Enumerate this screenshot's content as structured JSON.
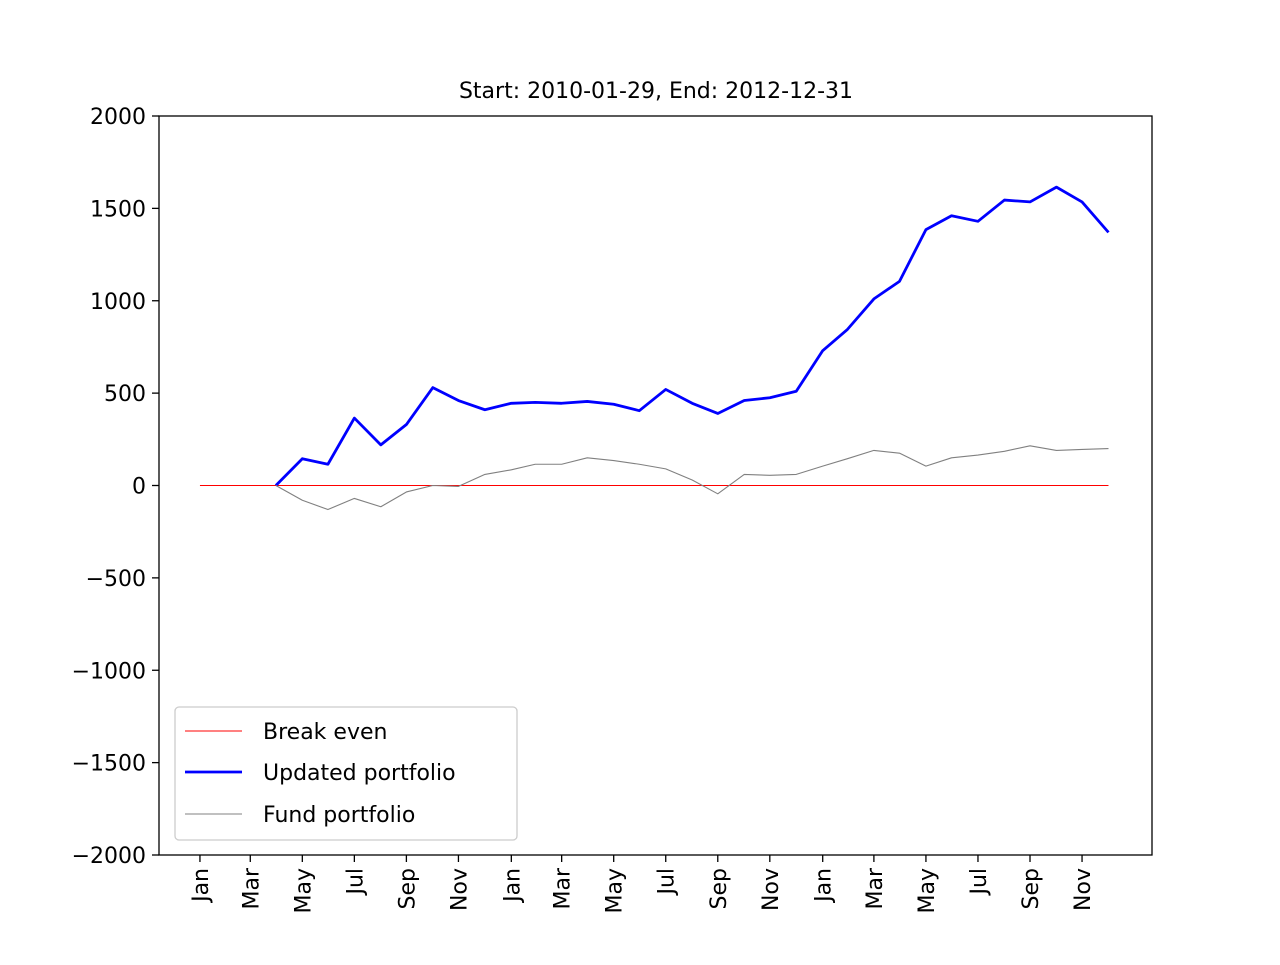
{
  "chart_data": {
    "type": "line",
    "title": "Start: 2010-01-29, End: 2012-12-31",
    "xlabel": "",
    "ylabel": "",
    "ylim": [
      -2000,
      2000
    ],
    "yticks": [
      -2000,
      -1500,
      -1000,
      -500,
      0,
      500,
      1000,
      1500,
      2000
    ],
    "ytick_labels": [
      "−2000",
      "−1500",
      "−1000",
      "−500",
      "0",
      "500",
      "1000",
      "1500",
      "2000"
    ],
    "xticks": [
      {
        "date": "2010-01-31",
        "label": "Jan"
      },
      {
        "date": "2010-03-31",
        "label": "Mar"
      },
      {
        "date": "2010-05-31",
        "label": "May"
      },
      {
        "date": "2010-07-31",
        "label": "Jul"
      },
      {
        "date": "2010-09-30",
        "label": "Sep"
      },
      {
        "date": "2010-11-30",
        "label": "Nov"
      },
      {
        "date": "2011-01-31",
        "label": "Jan"
      },
      {
        "date": "2011-03-31",
        "label": "Mar"
      },
      {
        "date": "2011-05-31",
        "label": "May"
      },
      {
        "date": "2011-07-31",
        "label": "Jul"
      },
      {
        "date": "2011-09-30",
        "label": "Sep"
      },
      {
        "date": "2011-11-30",
        "label": "Nov"
      },
      {
        "date": "2012-01-31",
        "label": "Jan"
      },
      {
        "date": "2012-03-31",
        "label": "Mar"
      },
      {
        "date": "2012-05-31",
        "label": "May"
      },
      {
        "date": "2012-07-31",
        "label": "Jul"
      },
      {
        "date": "2012-09-30",
        "label": "Sep"
      },
      {
        "date": "2012-11-30",
        "label": "Nov"
      }
    ],
    "xlim": [
      "2009-12-14",
      "2013-02-20"
    ],
    "grid": false,
    "legend": "lower-left",
    "series": [
      {
        "name": "Break even",
        "color": "#ff0000",
        "linewidth": "thin",
        "x": [
          "2010-01-31",
          "2012-12-31"
        ],
        "y": [
          0,
          0
        ]
      },
      {
        "name": "Updated portfolio",
        "color": "#0000ff",
        "linewidth": "thick",
        "x": [
          "2010-04-30",
          "2010-05-31",
          "2010-06-30",
          "2010-07-31",
          "2010-08-31",
          "2010-09-30",
          "2010-10-31",
          "2010-11-30",
          "2010-12-31",
          "2011-01-31",
          "2011-02-28",
          "2011-03-31",
          "2011-04-30",
          "2011-05-31",
          "2011-06-30",
          "2011-07-31",
          "2011-08-31",
          "2011-09-30",
          "2011-10-31",
          "2011-11-30",
          "2011-12-31",
          "2012-01-31",
          "2012-02-29",
          "2012-03-31",
          "2012-04-30",
          "2012-05-31",
          "2012-06-30",
          "2012-07-31",
          "2012-08-31",
          "2012-09-30",
          "2012-10-31",
          "2012-11-30",
          "2012-12-31"
        ],
        "y": [
          0,
          145,
          115,
          365,
          220,
          330,
          530,
          460,
          410,
          445,
          450,
          445,
          455,
          440,
          405,
          520,
          445,
          390,
          460,
          475,
          510,
          730,
          845,
          1010,
          1105,
          1385,
          1460,
          1430,
          1545,
          1535,
          1615,
          1535,
          1370
        ]
      },
      {
        "name": "Fund portfolio",
        "color": "#808080",
        "linewidth": "thin",
        "x": [
          "2010-04-30",
          "2010-05-31",
          "2010-06-30",
          "2010-07-31",
          "2010-08-31",
          "2010-09-30",
          "2010-10-31",
          "2010-11-30",
          "2010-12-31",
          "2011-01-31",
          "2011-02-28",
          "2011-03-31",
          "2011-04-30",
          "2011-05-31",
          "2011-06-30",
          "2011-07-31",
          "2011-08-31",
          "2011-09-30",
          "2011-10-31",
          "2011-11-30",
          "2011-12-31",
          "2012-01-31",
          "2012-02-29",
          "2012-03-31",
          "2012-04-30",
          "2012-05-31",
          "2012-06-30",
          "2012-07-31",
          "2012-08-31",
          "2012-09-30",
          "2012-10-31",
          "2012-11-30",
          "2012-12-31"
        ],
        "y": [
          0,
          -80,
          -130,
          -70,
          -115,
          -35,
          0,
          -5,
          60,
          85,
          115,
          115,
          150,
          135,
          115,
          90,
          30,
          -45,
          60,
          55,
          60,
          105,
          145,
          190,
          175,
          105,
          150,
          165,
          185,
          215,
          190,
          195,
          200
        ]
      }
    ]
  }
}
